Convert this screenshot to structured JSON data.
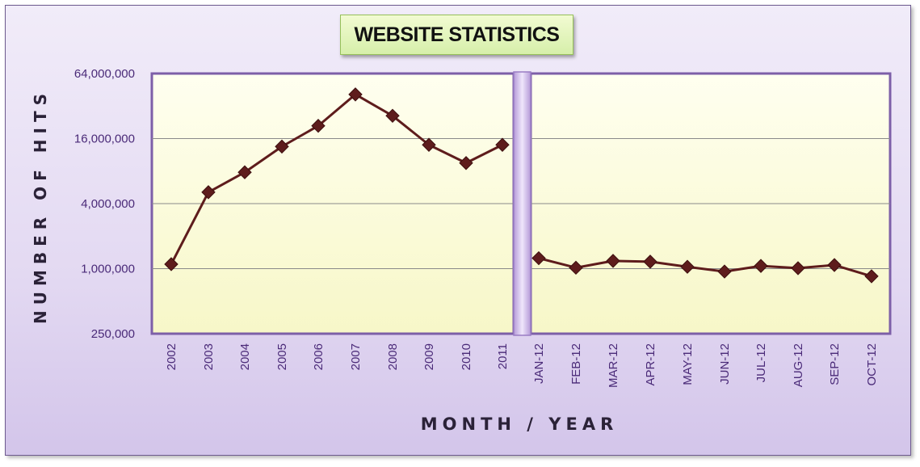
{
  "title": "WEBSITE STATISTICS",
  "colors": {
    "line": "#5e1c1c",
    "marker": "#5e1c1c",
    "tick_text": "#4a2a78",
    "plot_fill": "#ffffd9",
    "divider": "#c9b6e6"
  },
  "chart_data": {
    "type": "line",
    "title": "WEBSITE STATISTICS",
    "xlabel": "MONTH / YEAR",
    "ylabel": "NUMBER OF HITS",
    "y_scale": "log2",
    "ylim": [
      250000,
      64000000
    ],
    "y_ticks": [
      "64,000,000",
      "16,000,000",
      "4,000,000",
      "1,000,000",
      "250,000"
    ],
    "grid": true,
    "legend": "none",
    "panels": [
      {
        "x": [
          "2002",
          "2003",
          "2004",
          "2005",
          "2006",
          "2007",
          "2008",
          "2009",
          "2010",
          "2011"
        ],
        "values": [
          1100000,
          5100000,
          7800000,
          13500000,
          21000000,
          41000000,
          26000000,
          14000000,
          9500000,
          14000000
        ]
      },
      {
        "x": [
          "JAN-12",
          "FEB-12",
          "MAR-12",
          "APR-12",
          "MAY-12",
          "JUN-12",
          "JUL-12",
          "AUG-12",
          "SEP-12",
          "OCT-12"
        ],
        "values": [
          1250000,
          1020000,
          1180000,
          1160000,
          1040000,
          940000,
          1060000,
          1010000,
          1080000,
          850000
        ]
      }
    ]
  }
}
